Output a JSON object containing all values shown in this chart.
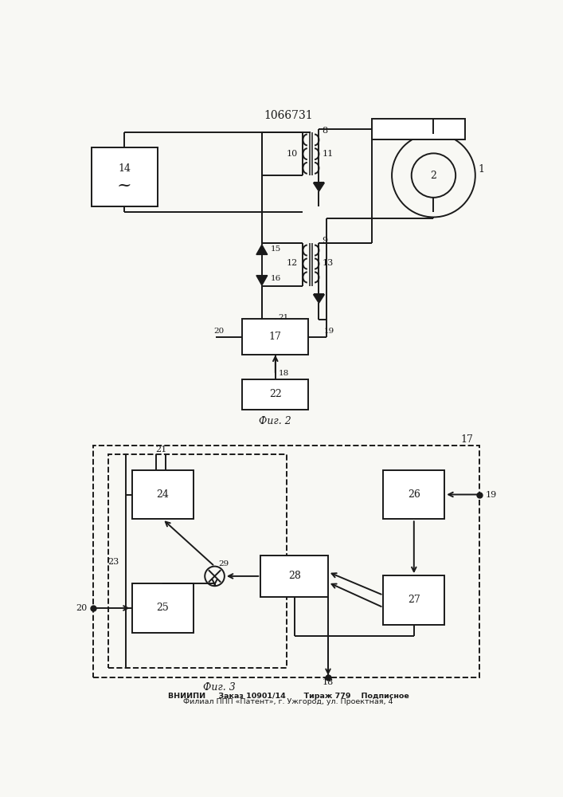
{
  "title": "1066731",
  "fig2_label": "Фиг. 2",
  "fig3_label": "Фиг. 3",
  "bottom_text1": "ВНИИПИ     Заказ 10901/14       Тираж 779    Подписное",
  "bottom_text2": "Филиал ППП «Патент», г. Ужгород, ул. Проектная, 4",
  "bg_color": "#f8f8f4",
  "line_color": "#1a1a1a",
  "lw": 1.4
}
